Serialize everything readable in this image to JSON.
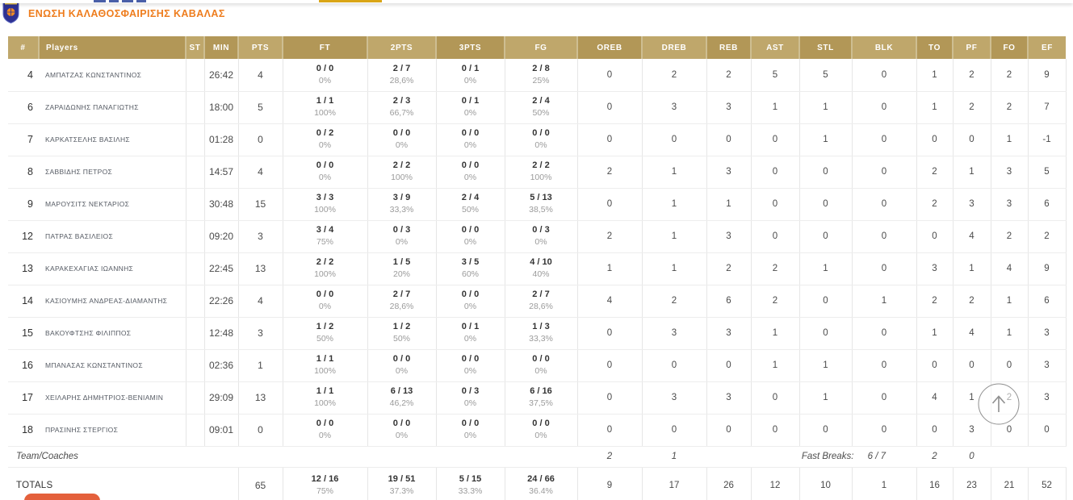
{
  "page": {
    "team_title": "ΕΝΩΣΗ ΚΑΛΑΘΟΣΦΑΙΡΙΣΗΣ ΚΑΒΑΛΑΣ",
    "logo_icon": "team-crest-shield",
    "colors": {
      "title_orange": "#ee7d1e",
      "header_gold_dark": "#b29757",
      "header_gold_light": "#bfa76b",
      "tab_underline_gold": "#d9a517",
      "bottom_button_coral": "#e4603c",
      "crest_navy": "#2e3192"
    }
  },
  "table": {
    "columns": [
      "#",
      "Players",
      "ST",
      "MIN",
      "PTS",
      "FT",
      "2PTS",
      "3PTS",
      "FG",
      "OREB",
      "DREB",
      "REB",
      "AST",
      "STL",
      "BLK",
      "TO",
      "PF",
      "FO",
      "EF"
    ],
    "players": [
      {
        "num": "4",
        "name": "ΑΜΠΑΤΖΑΣ ΚΩΝΣΤΑΝΤΙΝΟΣ",
        "st": "",
        "min": "26:42",
        "pts": "4",
        "ft": "0 / 0",
        "ft_pct": "0%",
        "p2": "2 / 7",
        "p2_pct": "28,6%",
        "p3": "0 / 1",
        "p3_pct": "0%",
        "fg": "2 / 8",
        "fg_pct": "25%",
        "oreb": "0",
        "dreb": "2",
        "reb": "2",
        "ast": "5",
        "stl": "5",
        "blk": "0",
        "to": "1",
        "pf": "2",
        "fo": "2",
        "ef": "9"
      },
      {
        "num": "6",
        "name": "ΖΑΡΑΙΔΩΝΗΣ ΠΑΝΑΓΙΩΤΗΣ",
        "st": "",
        "min": "18:00",
        "pts": "5",
        "ft": "1 / 1",
        "ft_pct": "100%",
        "p2": "2 / 3",
        "p2_pct": "66,7%",
        "p3": "0 / 1",
        "p3_pct": "0%",
        "fg": "2 / 4",
        "fg_pct": "50%",
        "oreb": "0",
        "dreb": "3",
        "reb": "3",
        "ast": "1",
        "stl": "1",
        "blk": "0",
        "to": "1",
        "pf": "2",
        "fo": "2",
        "ef": "7"
      },
      {
        "num": "7",
        "name": "ΚΑΡΚΑΤΣΕΛΗΣ ΒΑΣΙΛΗΣ",
        "st": "",
        "min": "01:28",
        "pts": "0",
        "ft": "0 / 2",
        "ft_pct": "0%",
        "p2": "0 / 0",
        "p2_pct": "0%",
        "p3": "0 / 0",
        "p3_pct": "0%",
        "fg": "0 / 0",
        "fg_pct": "0%",
        "oreb": "0",
        "dreb": "0",
        "reb": "0",
        "ast": "0",
        "stl": "1",
        "blk": "0",
        "to": "0",
        "pf": "0",
        "fo": "1",
        "ef": "-1"
      },
      {
        "num": "8",
        "name": "ΣΑΒΒΙΔΗΣ ΠΕΤΡΟΣ",
        "st": "",
        "min": "14:57",
        "pts": "4",
        "ft": "0 / 0",
        "ft_pct": "0%",
        "p2": "2 / 2",
        "p2_pct": "100%",
        "p3": "0 / 0",
        "p3_pct": "0%",
        "fg": "2 / 2",
        "fg_pct": "100%",
        "oreb": "2",
        "dreb": "1",
        "reb": "3",
        "ast": "0",
        "stl": "0",
        "blk": "0",
        "to": "2",
        "pf": "1",
        "fo": "3",
        "ef": "5"
      },
      {
        "num": "9",
        "name": "ΜΑΡΟΥΣΙΤΣ ΝΕΚΤΑΡΙΟΣ",
        "st": "",
        "min": "30:48",
        "pts": "15",
        "ft": "3 / 3",
        "ft_pct": "100%",
        "p2": "3 / 9",
        "p2_pct": "33,3%",
        "p3": "2 / 4",
        "p3_pct": "50%",
        "fg": "5 / 13",
        "fg_pct": "38,5%",
        "oreb": "0",
        "dreb": "1",
        "reb": "1",
        "ast": "0",
        "stl": "0",
        "blk": "0",
        "to": "2",
        "pf": "3",
        "fo": "3",
        "ef": "6"
      },
      {
        "num": "12",
        "name": "ΠΑΤΡΑΣ ΒΑΣΙΛΕΙΟΣ",
        "st": "",
        "min": "09:20",
        "pts": "3",
        "ft": "3 / 4",
        "ft_pct": "75%",
        "p2": "0 / 3",
        "p2_pct": "0%",
        "p3": "0 / 0",
        "p3_pct": "0%",
        "fg": "0 / 3",
        "fg_pct": "0%",
        "oreb": "2",
        "dreb": "1",
        "reb": "3",
        "ast": "0",
        "stl": "0",
        "blk": "0",
        "to": "0",
        "pf": "4",
        "fo": "2",
        "ef": "2"
      },
      {
        "num": "13",
        "name": "ΚΑΡΑΚΕΧΑΓΙΑΣ ΙΩΑΝΝΗΣ",
        "st": "",
        "min": "22:45",
        "pts": "13",
        "ft": "2 / 2",
        "ft_pct": "100%",
        "p2": "1 / 5",
        "p2_pct": "20%",
        "p3": "3 / 5",
        "p3_pct": "60%",
        "fg": "4 / 10",
        "fg_pct": "40%",
        "oreb": "1",
        "dreb": "1",
        "reb": "2",
        "ast": "2",
        "stl": "1",
        "blk": "0",
        "to": "3",
        "pf": "1",
        "fo": "4",
        "ef": "9"
      },
      {
        "num": "14",
        "name": "ΚΑΣΙΟΥΜΗΣ ΑΝΔΡΕΑΣ-ΔΙΑΜΑΝΤΗΣ",
        "st": "",
        "min": "22:26",
        "pts": "4",
        "ft": "0 / 0",
        "ft_pct": "0%",
        "p2": "2 / 7",
        "p2_pct": "28,6%",
        "p3": "0 / 0",
        "p3_pct": "0%",
        "fg": "2 / 7",
        "fg_pct": "28,6%",
        "oreb": "4",
        "dreb": "2",
        "reb": "6",
        "ast": "2",
        "stl": "0",
        "blk": "1",
        "to": "2",
        "pf": "2",
        "fo": "1",
        "ef": "6"
      },
      {
        "num": "15",
        "name": "ΒΑΚΟΥΦΤΣΗΣ ΦΙΛΙΠΠΟΣ",
        "st": "",
        "min": "12:48",
        "pts": "3",
        "ft": "1 / 2",
        "ft_pct": "50%",
        "p2": "1 / 2",
        "p2_pct": "50%",
        "p3": "0 / 1",
        "p3_pct": "0%",
        "fg": "1 / 3",
        "fg_pct": "33,3%",
        "oreb": "0",
        "dreb": "3",
        "reb": "3",
        "ast": "1",
        "stl": "0",
        "blk": "0",
        "to": "1",
        "pf": "4",
        "fo": "1",
        "ef": "3"
      },
      {
        "num": "16",
        "name": "ΜΠΑΝΑΣΑΣ ΚΩΝΣΤΑΝΤΙΝΟΣ",
        "st": "",
        "min": "02:36",
        "pts": "1",
        "ft": "1 / 1",
        "ft_pct": "100%",
        "p2": "0 / 0",
        "p2_pct": "0%",
        "p3": "0 / 0",
        "p3_pct": "0%",
        "fg": "0 / 0",
        "fg_pct": "0%",
        "oreb": "0",
        "dreb": "0",
        "reb": "0",
        "ast": "1",
        "stl": "1",
        "blk": "0",
        "to": "0",
        "pf": "0",
        "fo": "0",
        "ef": "3"
      },
      {
        "num": "17",
        "name": "ΧΕΙΛΑΡΗΣ ΔΗΜΗΤΡΙΟΣ-ΒΕΝΙΑΜΙΝ",
        "st": "",
        "min": "29:09",
        "pts": "13",
        "ft": "1 / 1",
        "ft_pct": "100%",
        "p2": "6 / 13",
        "p2_pct": "46,2%",
        "p3": "0 / 3",
        "p3_pct": "0%",
        "fg": "6 / 16",
        "fg_pct": "37,5%",
        "oreb": "0",
        "dreb": "3",
        "reb": "3",
        "ast": "0",
        "stl": "1",
        "blk": "0",
        "to": "4",
        "pf": "1",
        "fo": "2",
        "ef": "3"
      },
      {
        "num": "18",
        "name": "ΠΡΑΣΙΝΗΣ ΣΤΕΡΓΙΟΣ",
        "st": "",
        "min": "09:01",
        "pts": "0",
        "ft": "0 / 0",
        "ft_pct": "0%",
        "p2": "0 / 0",
        "p2_pct": "0%",
        "p3": "0 / 0",
        "p3_pct": "0%",
        "fg": "0 / 0",
        "fg_pct": "0%",
        "oreb": "0",
        "dreb": "0",
        "reb": "0",
        "ast": "0",
        "stl": "0",
        "blk": "0",
        "to": "0",
        "pf": "3",
        "fo": "0",
        "ef": "0"
      }
    ],
    "team_coaches": {
      "label": "Team/Coaches",
      "oreb": "2",
      "dreb": "1",
      "fast_breaks_label": "Fast Breaks:",
      "fast_breaks_value": "6 / 7",
      "to": "2",
      "pf": "0"
    },
    "totals": {
      "label": "TOTALS",
      "pts": "65",
      "ft": "12 / 16",
      "ft_pct": "75%",
      "p2": "19 / 51",
      "p2_pct": "37.3%",
      "p3": "5 / 15",
      "p3_pct": "33.3%",
      "fg": "24 / 66",
      "fg_pct": "36.4%",
      "oreb": "9",
      "dreb": "17",
      "reb": "26",
      "ast": "12",
      "stl": "10",
      "blk": "1",
      "to": "16",
      "pf": "23",
      "fo": "21",
      "ef": "52"
    }
  },
  "floating": {
    "scroll_top_icon": "up-arrow"
  }
}
